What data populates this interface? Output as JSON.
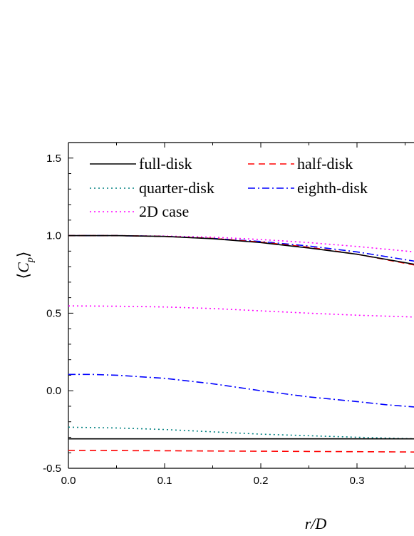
{
  "chart_data": {
    "type": "line",
    "xlabel": "r/D",
    "ylabel": "⟨C_p⟩",
    "xlim": [
      0.0,
      0.36
    ],
    "ylim": [
      -0.5,
      1.6
    ],
    "xticks": [
      "0.0",
      "0.1",
      "0.2",
      "0.3"
    ],
    "yticks": [
      "-0.5",
      "0.0",
      "0.5",
      "1.0",
      "1.5"
    ],
    "legend_position": "top",
    "series": [
      {
        "name": "full-disk",
        "color": "#000000",
        "dash": "solid",
        "curves": [
          {
            "x": [
              0.0,
              0.05,
              0.1,
              0.15,
              0.2,
              0.25,
              0.3,
              0.36
            ],
            "y": [
              1.0,
              1.0,
              0.995,
              0.98,
              0.955,
              0.92,
              0.88,
              0.815
            ]
          },
          {
            "x": [
              0.0,
              0.1,
              0.2,
              0.3,
              0.36
            ],
            "y": [
              -0.31,
              -0.31,
              -0.31,
              -0.31,
              -0.31
            ]
          }
        ]
      },
      {
        "name": "half-disk",
        "color": "#ff0000",
        "dash": "dashed",
        "curves": [
          {
            "x": [
              0.0,
              0.05,
              0.1,
              0.15,
              0.2,
              0.25,
              0.3,
              0.36
            ],
            "y": [
              1.0,
              1.0,
              0.995,
              0.982,
              0.958,
              0.925,
              0.88,
              0.81
            ]
          },
          {
            "x": [
              0.0,
              0.1,
              0.2,
              0.3,
              0.36
            ],
            "y": [
              -0.385,
              -0.387,
              -0.39,
              -0.393,
              -0.395
            ]
          }
        ]
      },
      {
        "name": "quarter-disk",
        "color": "#008080",
        "dash": "dotted",
        "curves": [
          {
            "x": [
              0.0,
              0.05,
              0.1,
              0.15,
              0.2,
              0.25,
              0.3,
              0.36
            ],
            "y": [
              -0.235,
              -0.24,
              -0.25,
              -0.265,
              -0.28,
              -0.29,
              -0.3,
              -0.31
            ]
          }
        ]
      },
      {
        "name": "eighth-disk",
        "color": "#0000ff",
        "dash": "dashdot",
        "curves": [
          {
            "x": [
              0.0,
              0.05,
              0.1,
              0.15,
              0.2,
              0.25,
              0.3,
              0.36
            ],
            "y": [
              1.0,
              1.0,
              0.995,
              0.982,
              0.962,
              0.933,
              0.895,
              0.835
            ]
          },
          {
            "x": [
              0.0,
              0.025,
              0.05,
              0.1,
              0.15,
              0.2,
              0.25,
              0.3,
              0.33,
              0.36
            ],
            "y": [
              0.105,
              0.105,
              0.1,
              0.08,
              0.045,
              0.0,
              -0.04,
              -0.07,
              -0.09,
              -0.105
            ]
          }
        ]
      },
      {
        "name": "2D case",
        "color": "#ff00ff",
        "dash": "dotted",
        "curves": [
          {
            "x": [
              0.0,
              0.05,
              0.1,
              0.15,
              0.2,
              0.25,
              0.3,
              0.36
            ],
            "y": [
              1.0,
              1.0,
              0.997,
              0.99,
              0.975,
              0.955,
              0.93,
              0.895
            ]
          },
          {
            "x": [
              0.0,
              0.05,
              0.1,
              0.15,
              0.2,
              0.25,
              0.3,
              0.36
            ],
            "y": [
              0.547,
              0.545,
              0.54,
              0.53,
              0.515,
              0.5,
              0.487,
              0.475
            ]
          }
        ]
      }
    ]
  }
}
